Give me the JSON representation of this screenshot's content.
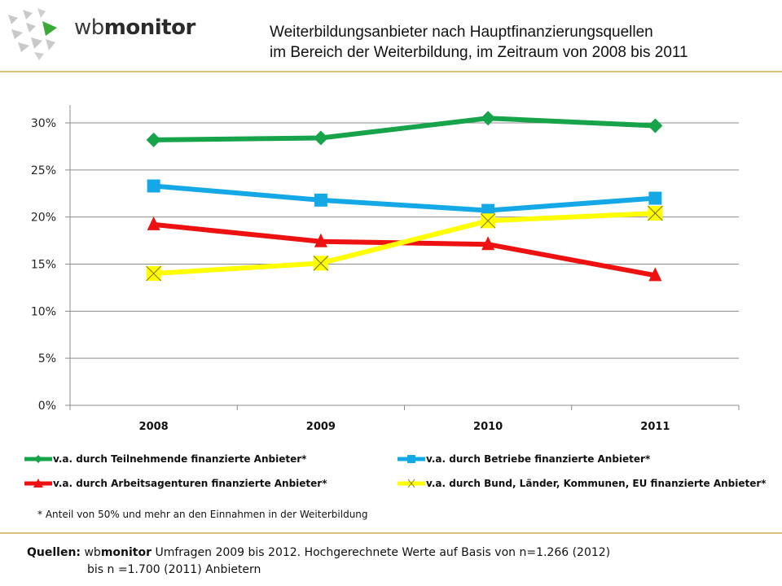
{
  "logo": {
    "prefix": "wb",
    "name": "monitor",
    "accent_color": "#3aa935"
  },
  "title": {
    "line1": "Weiterbildungsanbieter nach Hauptfinanzierungsquellen",
    "line2": "im Bereich der Weiterbildung,  im Zeitraum von 2008 bis 2011"
  },
  "chart_data": {
    "type": "line",
    "title": "Weiterbildungsanbieter nach Hauptfinanzierungsquellen im Bereich der Weiterbildung, im Zeitraum von 2008 bis 2011",
    "xlabel": "",
    "ylabel": "",
    "categories": [
      "2008",
      "2009",
      "2010",
      "2011"
    ],
    "ylim": [
      0,
      30
    ],
    "yticks": [
      0,
      5,
      10,
      15,
      20,
      25,
      30
    ],
    "ytick_labels": [
      "0%",
      "5%",
      "10%",
      "15%",
      "20%",
      "25%",
      "30%"
    ],
    "grid": true,
    "legend_position": "bottom",
    "series": [
      {
        "name": "v.a. durch Teilnehmende finanzierte Anbieter*",
        "color": "#16a34a",
        "marker": "diamond",
        "values": [
          28.2,
          28.4,
          30.5,
          29.7
        ]
      },
      {
        "name": "v.a. durch Betriebe finanzierte Anbieter*",
        "color": "#14a8e6",
        "marker": "square",
        "values": [
          23.3,
          21.8,
          20.7,
          22.0
        ]
      },
      {
        "name": "v.a. durch Arbeitsagenturen finanzierte Anbieter*",
        "color": "#ee1111",
        "marker": "triangle",
        "values": [
          19.2,
          17.4,
          17.1,
          13.8
        ]
      },
      {
        "name": "v.a. durch Bund, Länder, Kommunen, EU finanzierte Anbieter*",
        "color": "#ffff00",
        "marker": "x-box",
        "values": [
          14.0,
          15.1,
          19.6,
          20.4
        ]
      }
    ]
  },
  "footnote": "* Anteil von 50% und mehr an den Einnahmen in der Weiterbildung",
  "sources": {
    "label": "Quellen:",
    "brand_prefix": "wb",
    "brand_name": "monitor",
    "line1_rest": " Umfragen 2009 bis 2012. Hochgerechnete Werte auf Basis von n=1.266 (2012)",
    "line2": "bis n =1.700 (2011) Anbietern"
  }
}
